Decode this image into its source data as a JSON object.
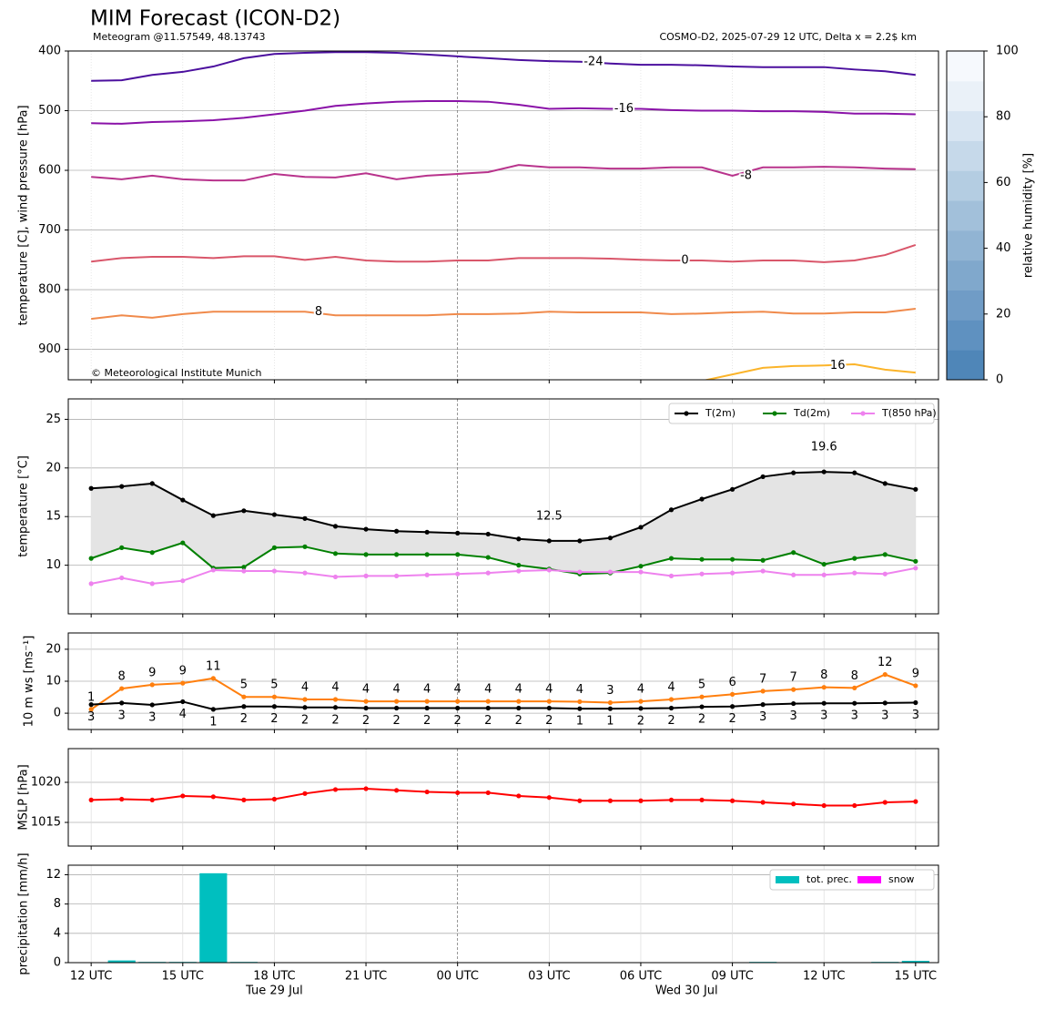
{
  "title": "MIM Forecast (ICON-D2)",
  "subtitle_left": "Meteogram @11.57549, 48.13743",
  "subtitle_right": "COSMO-D2, 2025-07-29 12 UTC, Delta x = 2.2$ km",
  "credit": "© Meteorological Institute Munich",
  "chart_data": [
    {
      "type": "contour",
      "ylabel": "temperature [C], wind pressure [hPa]",
      "x": [
        0,
        1,
        2,
        3,
        4,
        5,
        6,
        7,
        8,
        9,
        10,
        11,
        12,
        13,
        14,
        15,
        16,
        17,
        18,
        19,
        20,
        21,
        22,
        23,
        24,
        25,
        26,
        27
      ],
      "xlim": [
        -0.75,
        27.75
      ],
      "xticks": [
        0,
        3,
        6,
        9,
        12,
        15,
        18,
        21,
        24,
        27
      ],
      "ylim": [
        951,
        400
      ],
      "yticks": [
        400,
        500,
        600,
        700,
        800,
        900
      ],
      "grid": true,
      "series": [
        {
          "level": -24,
          "color": "#4b0f9e",
          "values": [
            450,
            449,
            440,
            435,
            426,
            412,
            405,
            403,
            402,
            402,
            403,
            406,
            409,
            412,
            415,
            417,
            418,
            421,
            423,
            423,
            424,
            426,
            427,
            427,
            427,
            431,
            434,
            440
          ]
        },
        {
          "level": -16,
          "color": "#8a12a8",
          "values": [
            521,
            522,
            519,
            518,
            516,
            512,
            506,
            500,
            492,
            488,
            485,
            484,
            484,
            485,
            490,
            497,
            496,
            497,
            497,
            499,
            500,
            500,
            501,
            501,
            502,
            505,
            505,
            506
          ]
        },
        {
          "level": -8,
          "color": "#b8338c",
          "values": [
            611,
            615,
            609,
            615,
            617,
            617,
            606,
            611,
            612,
            605,
            615,
            609,
            606,
            603,
            591,
            595,
            595,
            597,
            597,
            595,
            595,
            609,
            595,
            595,
            594,
            595,
            597,
            598
          ]
        },
        {
          "level": 0,
          "color": "#d9566a",
          "values": [
            753,
            747,
            745,
            745,
            747,
            744,
            744,
            750,
            745,
            751,
            753,
            753,
            751,
            751,
            747,
            747,
            747,
            748,
            750,
            751,
            751,
            753,
            751,
            751,
            754,
            751,
            742,
            725
          ]
        },
        {
          "level": 8,
          "color": "#f08a4b",
          "values": [
            849,
            843,
            847,
            841,
            837,
            837,
            837,
            837,
            843,
            843,
            843,
            843,
            841,
            841,
            840,
            837,
            838,
            838,
            838,
            841,
            840,
            838,
            837,
            840,
            840,
            838,
            838,
            832
          ]
        },
        {
          "level": 16,
          "color": "#fbb42a",
          "values": [
            null,
            null,
            null,
            null,
            null,
            null,
            null,
            null,
            null,
            null,
            null,
            null,
            null,
            null,
            null,
            null,
            null,
            null,
            null,
            null,
            953,
            942,
            931,
            928,
            927,
            925,
            934,
            939
          ]
        }
      ],
      "colorbar": {
        "label": "relative humidity [%]",
        "ylim": [
          0,
          100
        ],
        "yticks": [
          0,
          20,
          40,
          60,
          80,
          100
        ],
        "colors": [
          "#4f86b8",
          "#5f91c0",
          "#709cc6",
          "#80a8cc",
          "#91b4d3",
          "#a2c0da",
          "#b4cde2",
          "#c6d9ea",
          "#d8e5f2",
          "#eaf1f8",
          "#f6f9fd"
        ]
      }
    },
    {
      "type": "line",
      "ylabel": "temperature [°C]",
      "x": [
        0,
        1,
        2,
        3,
        4,
        5,
        6,
        7,
        8,
        9,
        10,
        11,
        12,
        13,
        14,
        15,
        16,
        17,
        18,
        19,
        20,
        21,
        22,
        23,
        24,
        25,
        26,
        27
      ],
      "xlim": [
        -0.75,
        27.75
      ],
      "xticks": [
        0,
        3,
        6,
        9,
        12,
        15,
        18,
        21,
        24,
        27
      ],
      "ylim": [
        5,
        27.1
      ],
      "yticks": [
        10,
        15,
        20,
        25
      ],
      "grid": true,
      "legend": "upper right",
      "fill_between": {
        "series": [
          0,
          1
        ],
        "color": "#e4e4e4"
      },
      "series": [
        {
          "name": "T(2m)",
          "color": "#000000",
          "values": [
            17.9,
            18.1,
            18.4,
            16.7,
            15.1,
            15.6,
            15.2,
            14.8,
            14.0,
            13.7,
            13.5,
            13.4,
            13.3,
            13.2,
            12.7,
            12.5,
            12.5,
            12.8,
            13.9,
            15.7,
            16.8,
            17.8,
            19.1,
            19.5,
            19.6,
            19.5,
            18.4,
            17.8
          ]
        },
        {
          "name": "Td(2m)",
          "color": "#008000",
          "values": [
            10.7,
            11.8,
            11.3,
            12.3,
            9.7,
            9.8,
            11.8,
            11.9,
            11.2,
            11.1,
            11.1,
            11.1,
            11.1,
            10.8,
            10.0,
            9.6,
            9.1,
            9.2,
            9.9,
            10.7,
            10.6,
            10.6,
            10.5,
            11.3,
            10.1,
            10.7,
            11.1,
            10.4
          ]
        },
        {
          "name": "T(850 hPa)",
          "color": "#ee82ee",
          "values": [
            8.1,
            8.7,
            8.1,
            8.4,
            9.5,
            9.4,
            9.4,
            9.2,
            8.8,
            8.9,
            8.9,
            9.0,
            9.1,
            9.2,
            9.4,
            9.5,
            9.3,
            9.3,
            9.3,
            8.9,
            9.1,
            9.2,
            9.4,
            9.0,
            9.0,
            9.2,
            9.1,
            9.7
          ]
        }
      ],
      "annotations": [
        {
          "text": 19.6,
          "color": "#ff0000"
        },
        {
          "text": 12.5,
          "color": "#0000ff"
        }
      ]
    },
    {
      "type": "line",
      "ylabel": "10 m ws [ms⁻¹]",
      "x": [
        0,
        1,
        2,
        3,
        4,
        5,
        6,
        7,
        8,
        9,
        10,
        11,
        12,
        13,
        14,
        15,
        16,
        17,
        18,
        19,
        20,
        21,
        22,
        23,
        24,
        25,
        26,
        27
      ],
      "xlim": [
        -0.75,
        27.75
      ],
      "xticks": [
        0,
        3,
        6,
        9,
        12,
        15,
        18,
        21,
        24,
        27
      ],
      "ylim": [
        -5.1,
        25.1
      ],
      "yticks": [
        0,
        10,
        20
      ],
      "grid": true,
      "series": [
        {
          "color": "#ff7f0e",
          "label_position": "above",
          "values": [
            1.2,
            7.7,
            8.9,
            9.4,
            10.9,
            5.1,
            5.1,
            4.3,
            4.3,
            3.7,
            3.7,
            3.7,
            3.7,
            3.7,
            3.7,
            3.7,
            3.6,
            3.3,
            3.7,
            4.3,
            5.1,
            5.9,
            6.9,
            7.4,
            8.1,
            7.9,
            12.1,
            8.6
          ],
          "value_labels": [
            "1",
            "8",
            "9",
            "9",
            "11",
            "5",
            "5",
            "4",
            "4",
            "4",
            "4",
            "4",
            "4",
            "4",
            "4",
            "4",
            "4",
            "3",
            "4",
            "4",
            "5",
            "6",
            "7",
            "7",
            "8",
            "8",
            "12",
            "9"
          ]
        },
        {
          "color": "#000000",
          "label_position": "below",
          "values": [
            2.7,
            3.2,
            2.6,
            3.6,
            1.2,
            2.1,
            2.1,
            1.8,
            1.8,
            1.6,
            1.6,
            1.6,
            1.6,
            1.6,
            1.6,
            1.6,
            1.4,
            1.4,
            1.5,
            1.6,
            2.0,
            2.1,
            2.7,
            3.0,
            3.1,
            3.1,
            3.2,
            3.3
          ],
          "value_labels": [
            "3",
            "3",
            "3",
            "4",
            "1",
            "2",
            "2",
            "2",
            "2",
            "2",
            "2",
            "2",
            "2",
            "2",
            "2",
            "2",
            "1",
            "1",
            "2",
            "2",
            "2",
            "2",
            "3",
            "3",
            "3",
            "3",
            "3",
            "3"
          ]
        }
      ]
    },
    {
      "type": "line",
      "ylabel": "MSLP [hPa]",
      "x": [
        0,
        1,
        2,
        3,
        4,
        5,
        6,
        7,
        8,
        9,
        10,
        11,
        12,
        13,
        14,
        15,
        16,
        17,
        18,
        19,
        20,
        21,
        22,
        23,
        24,
        25,
        26,
        27
      ],
      "xlim": [
        -0.75,
        27.75
      ],
      "xticks": [
        0,
        3,
        6,
        9,
        12,
        15,
        18,
        21,
        24,
        27
      ],
      "ylim": [
        1012.05,
        1024.2
      ],
      "yticks": [
        1015,
        1020
      ],
      "grid": true,
      "series": [
        {
          "color": "#ff0000",
          "values": [
            1017.8,
            1017.9,
            1017.8,
            1018.3,
            1018.2,
            1017.8,
            1017.9,
            1018.6,
            1019.1,
            1019.2,
            1019.0,
            1018.8,
            1018.7,
            1018.7,
            1018.3,
            1018.1,
            1017.7,
            1017.7,
            1017.7,
            1017.8,
            1017.8,
            1017.7,
            1017.5,
            1017.3,
            1017.1,
            1017.1,
            1017.5,
            1017.6
          ]
        }
      ]
    },
    {
      "type": "bar",
      "ylabel": "precipitation [mm/h]",
      "x": [
        0,
        1,
        2,
        3,
        4,
        5,
        6,
        7,
        8,
        9,
        10,
        11,
        12,
        13,
        14,
        15,
        16,
        17,
        18,
        19,
        20,
        21,
        22,
        23,
        24,
        25,
        26,
        27
      ],
      "xlim": [
        -0.75,
        27.75
      ],
      "xticks": [
        {
          "value": 0,
          "label": "12 UTC"
        },
        {
          "value": 3,
          "label": "15 UTC"
        },
        {
          "value": 6,
          "label": "18 UTC"
        },
        {
          "value": 9,
          "label": "21 UTC"
        },
        {
          "value": 12,
          "label": "00 UTC"
        },
        {
          "value": 15,
          "label": "03 UTC"
        },
        {
          "value": 18,
          "label": "06 UTC"
        },
        {
          "value": 21,
          "label": "09 UTC"
        },
        {
          "value": 24,
          "label": "12 UTC"
        },
        {
          "value": 27,
          "label": "15 UTC"
        }
      ],
      "xtick_sublabels": [
        {
          "value": 6,
          "label": "Tue 29 Jul"
        },
        {
          "value": 19.5,
          "label": "Wed 30 Jul"
        }
      ],
      "ylim": [
        0,
        13.3
      ],
      "yticks": [
        0,
        4,
        8,
        12
      ],
      "grid": true,
      "legend": "upper right",
      "series": [
        {
          "name": "tot. prec.",
          "color": "#00bfbf",
          "values": [
            0,
            0.3,
            0.1,
            0.1,
            12.2,
            0.1,
            0,
            0,
            0,
            0,
            0,
            0,
            0,
            0,
            0,
            0,
            0,
            0,
            0,
            0,
            0,
            0,
            0.1,
            0,
            0,
            0,
            0.1,
            0.25
          ]
        },
        {
          "name": "snow",
          "color": "#ff00ff",
          "values": [
            0,
            0,
            0,
            0,
            0,
            0,
            0,
            0,
            0,
            0,
            0,
            0,
            0,
            0,
            0,
            0,
            0,
            0,
            0,
            0,
            0,
            0,
            0,
            0,
            0,
            0,
            0,
            0
          ]
        }
      ]
    }
  ]
}
